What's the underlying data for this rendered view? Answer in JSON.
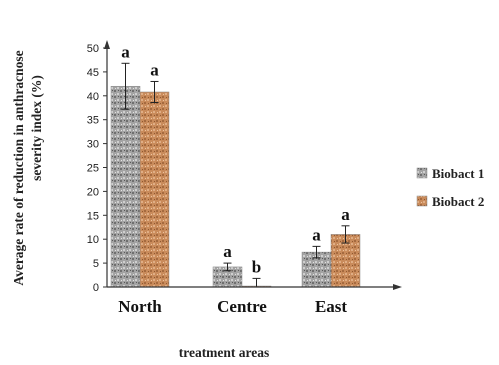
{
  "chart_data": {
    "type": "bar",
    "categories": [
      "North",
      "Centre",
      "East"
    ],
    "series": [
      {
        "name": "Biobact 1",
        "values": [
          42,
          4.2,
          7.3
        ],
        "errors": [
          4.8,
          0.8,
          1.2
        ],
        "significance": [
          "a",
          "a",
          "a"
        ],
        "color": "#9a9a9a"
      },
      {
        "name": "Biobact 2",
        "values": [
          40.8,
          0.2,
          11
        ],
        "errors": [
          2.2,
          1.6,
          1.8
        ],
        "significance": [
          "a",
          "b",
          "a"
        ],
        "color": "#c88a5a"
      }
    ],
    "xlabel": "treatment areas",
    "ylabel_line1": "Average rate of reduction in anthracnose",
    "ylabel_line2": "severity index (%)",
    "ylim": [
      0,
      50
    ],
    "yticks": [
      0,
      5,
      10,
      15,
      20,
      25,
      30,
      35,
      40,
      45,
      50
    ],
    "legend_position": "right",
    "grid": false
  }
}
